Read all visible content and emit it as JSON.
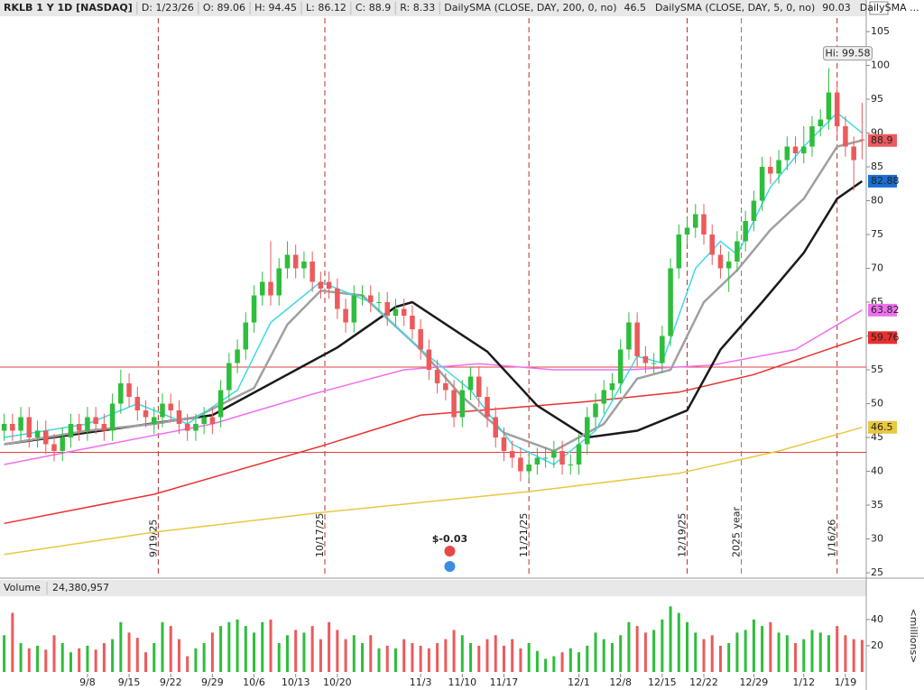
{
  "chart_data": {
    "type": "candlestick",
    "header": [
      "RKLB 1 Y 1D [NASDAQ]",
      "D: 1/23/26",
      "O: 89.06",
      "H: 94.45",
      "L: 86.12",
      "C: 88.9",
      "R: 8.33"
    ],
    "study_legend": [
      {
        "label": "DailySMA (CLOSE, DAY, 200, 0, no)",
        "readout": "46.5",
        "color": "#d8a000"
      },
      {
        "label": "DailySMA (CLOSE, DAY, 5, 0, no)",
        "readout": "90.03",
        "color": "#10b0c8"
      },
      {
        "label": "DailySMA ...",
        "color": "#d040d0"
      }
    ],
    "up_color": "#2ebd3c",
    "down_color": "#ec5a5c",
    "open": [
      46,
      47,
      46,
      48,
      45,
      46,
      44,
      43,
      45,
      47,
      46,
      48,
      47,
      46,
      50,
      53,
      51,
      49,
      47,
      48,
      50,
      49,
      47,
      46,
      47,
      48,
      48,
      52,
      56,
      58,
      62,
      66,
      68,
      66,
      70,
      72,
      70,
      71,
      68,
      68,
      67,
      64,
      62,
      66,
      66,
      65,
      65,
      63,
      64,
      63,
      61,
      58,
      55,
      53,
      52,
      48,
      52,
      54,
      51,
      48,
      45,
      43,
      42,
      40,
      41,
      42,
      42,
      43,
      41,
      41,
      44,
      48,
      50,
      52,
      53,
      58,
      62,
      57,
      56,
      56,
      60,
      70,
      75,
      76,
      78,
      75,
      72,
      70,
      71,
      74,
      77,
      80,
      85,
      84,
      86,
      88,
      87,
      88,
      91,
      92,
      96,
      91,
      88,
      89.06
    ],
    "high": [
      48.5,
      48.5,
      49.5,
      49.5,
      47.5,
      47.5,
      45.5,
      46.5,
      48.5,
      48.5,
      49.5,
      49.5,
      48.5,
      51.5,
      55,
      54.5,
      52.5,
      50.5,
      49.5,
      51.5,
      51.5,
      50.5,
      48.5,
      48.5,
      49.5,
      49.5,
      53.5,
      57.5,
      59.5,
      63.5,
      67.5,
      69.5,
      74,
      71.5,
      74,
      73.5,
      72.5,
      72.5,
      69.5,
      69.5,
      68.5,
      65.5,
      67.5,
      67.5,
      67.5,
      66.5,
      66.5,
      65.5,
      65.5,
      64.5,
      62.5,
      59.5,
      56.5,
      54.5,
      53.5,
      53.5,
      55.5,
      55.5,
      52.5,
      49.5,
      46.5,
      44.5,
      43.5,
      42.5,
      43.5,
      43.5,
      44.5,
      44.5,
      42.5,
      45.5,
      49.5,
      51.5,
      53.5,
      54.5,
      59.5,
      63.5,
      63.5,
      58.5,
      57.5,
      61.5,
      71.5,
      76.5,
      77.5,
      79.5,
      79.5,
      76.5,
      73.5,
      72.5,
      75.5,
      78.5,
      81.5,
      86.5,
      86.5,
      87.5,
      89.5,
      89.5,
      91,
      92.5,
      93.5,
      99.58,
      97.5,
      92.5,
      89.5,
      94.45
    ],
    "low": [
      44.5,
      44.5,
      44.5,
      43.5,
      43.5,
      42.5,
      41.5,
      41.5,
      43.5,
      44.5,
      44.5,
      45.5,
      44.5,
      44.5,
      48.5,
      49.5,
      47.5,
      46.5,
      45.5,
      46.5,
      47.5,
      45.5,
      44.5,
      44.5,
      45.5,
      45.5,
      46.5,
      50.5,
      54.5,
      56.5,
      60.5,
      64.5,
      64.5,
      64.5,
      68.5,
      68.5,
      68.5,
      66.5,
      65.5,
      65.5,
      62.5,
      60.5,
      60.5,
      64.5,
      63.5,
      63.5,
      61.5,
      61.5,
      61.5,
      59.5,
      56.5,
      53.5,
      51.5,
      50.5,
      46.5,
      46.5,
      50.5,
      49.5,
      46.5,
      43.5,
      41.5,
      40.5,
      38.5,
      38.5,
      39.5,
      40.5,
      40.5,
      39.5,
      39.5,
      39.5,
      42.5,
      46.5,
      48.5,
      50.5,
      51.5,
      56.5,
      55.5,
      54.5,
      54.5,
      54.5,
      58.5,
      68.5,
      73.5,
      74.5,
      73.5,
      70.5,
      68.5,
      66.5,
      69.5,
      72.5,
      75.5,
      78.5,
      82.5,
      82.5,
      84.5,
      85.5,
      85.5,
      86.5,
      89.5,
      90.5,
      89.5,
      86.5,
      81.5,
      86.12
    ],
    "close": [
      47,
      46,
      48,
      45,
      46,
      44,
      43,
      45,
      47,
      46,
      48,
      47,
      46,
      50,
      53,
      51,
      49,
      48,
      48,
      50,
      49,
      47,
      46,
      47,
      48,
      47,
      52,
      56,
      58,
      62,
      66,
      68,
      66,
      70,
      72,
      70,
      71,
      68,
      67,
      67,
      64,
      62,
      66,
      66,
      65,
      65,
      63,
      64,
      63,
      61,
      58,
      55,
      53,
      52,
      48,
      52,
      54,
      51,
      48,
      45,
      43,
      42,
      40,
      41,
      42,
      42,
      43,
      41,
      41,
      44,
      48,
      50,
      52,
      53,
      58,
      62,
      57,
      56,
      56,
      60,
      70,
      75,
      76,
      78,
      75,
      72,
      70,
      71,
      74,
      77,
      80,
      85,
      84,
      86,
      88,
      87,
      88,
      91,
      92,
      96,
      91,
      88,
      86,
      88.9
    ],
    "lines": [
      {
        "color": "#e8c840",
        "x": [
          0,
          18,
          38,
          63,
          81,
          93,
          103
        ],
        "values": [
          27.7,
          31,
          33.9,
          37,
          39.7,
          43,
          46.5
        ]
      },
      {
        "color": "#e83030",
        "x": [
          0,
          18,
          38,
          50,
          70,
          81,
          90,
          103
        ],
        "values": [
          32.3,
          36.6,
          43.7,
          48.3,
          50.3,
          51.7,
          54.3,
          59.76
        ]
      },
      {
        "color": "#ee70ee",
        "x": [
          0,
          25,
          37,
          48,
          57,
          66,
          75,
          85,
          95,
          103
        ],
        "values": [
          41,
          47,
          51.4,
          55,
          55.9,
          55,
          55,
          55.7,
          58,
          63.82
        ]
      },
      {
        "color": "#1a1a1a",
        "x": [
          0,
          25,
          40,
          47,
          49,
          58,
          64,
          70,
          76,
          82,
          86,
          91,
          96,
          100,
          103
        ],
        "values": [
          44,
          48.3,
          58.3,
          64.3,
          65,
          57.7,
          49.7,
          45,
          46,
          49,
          58,
          65,
          72.3,
          80.3,
          82.88
        ]
      },
      {
        "color": "#a0a0a0",
        "x": [
          0,
          10,
          18,
          23,
          30,
          34,
          38,
          43,
          50,
          55,
          60,
          66,
          72,
          76,
          80,
          84,
          88,
          92,
          96,
          100,
          103
        ],
        "values": [
          44,
          46,
          47,
          48,
          52.3,
          61.7,
          66.7,
          66,
          58,
          51,
          45.7,
          43,
          47,
          53.7,
          55,
          65,
          69.7,
          75.7,
          80.3,
          88,
          88.9
        ]
      },
      {
        "color": "#40d8e8",
        "x": [
          0,
          10,
          16,
          22,
          28,
          32,
          38,
          44,
          50,
          56,
          61,
          66,
          71,
          76,
          79,
          83,
          86,
          88,
          92,
          96,
          100,
          103
        ],
        "values": [
          45,
          47,
          50,
          47,
          52,
          62,
          68,
          65,
          58,
          52,
          44,
          41,
          46,
          57,
          56,
          70,
          74,
          72,
          82,
          88,
          93,
          90.03
        ]
      }
    ],
    "hlines": [
      {
        "value": 55.4,
        "color": "#e04040"
      },
      {
        "value": 42.8,
        "color": "#e04040"
      }
    ],
    "vlines": [
      {
        "x": 18.5,
        "label": "9/19/25",
        "color": "#b03030"
      },
      {
        "x": 38.5,
        "label": "10/17/25",
        "color": "#b03030"
      },
      {
        "x": 63,
        "label": "11/21/25",
        "color": "#b03030"
      },
      {
        "x": 82,
        "label": "12/19/25",
        "color": "#b03030"
      },
      {
        "x": 88.5,
        "label": "2025 year",
        "color": "#808080"
      },
      {
        "x": 100,
        "label": "1/16/26",
        "color": "#b03030"
      }
    ],
    "earnings": {
      "x": 53.5,
      "label": "$-0.03"
    },
    "high_marker": {
      "x": 99,
      "value": 99.58,
      "label": "Hi: 99.58"
    },
    "price_labels": [
      {
        "value": 88.9,
        "label": "88.9",
        "color": "#ec5a5c"
      },
      {
        "value": 82.88,
        "label": "82.88",
        "color": "#1a6fd0"
      },
      {
        "value": 63.82,
        "label": "63.82",
        "color": "#ee70ee"
      },
      {
        "value": 59.76,
        "label": "59.76",
        "color": "#e83030"
      },
      {
        "value": 46.5,
        "label": "46.5",
        "color": "#e8c840"
      }
    ],
    "ylim": [
      25,
      105
    ],
    "yticks": [
      25,
      30,
      35,
      40,
      45,
      50,
      55,
      60,
      65,
      70,
      75,
      80,
      85,
      90,
      95,
      100,
      105
    ],
    "xlim": [
      -0.5,
      103.5
    ],
    "xticks": [
      {
        "value": 10,
        "label": "9/8"
      },
      {
        "value": 15,
        "label": "9/15"
      },
      {
        "value": 20,
        "label": "9/22"
      },
      {
        "value": 25,
        "label": "9/29"
      },
      {
        "value": 30,
        "label": "10/6"
      },
      {
        "value": 35,
        "label": "10/13"
      },
      {
        "value": 40,
        "label": "10/20"
      },
      {
        "value": 50,
        "label": "11/3"
      },
      {
        "value": 55,
        "label": "11/10"
      },
      {
        "value": 60,
        "label": "11/17"
      },
      {
        "value": 69,
        "label": "12/1"
      },
      {
        "value": 74,
        "label": "12/8"
      },
      {
        "value": 79,
        "label": "12/15"
      },
      {
        "value": 84,
        "label": "12/22"
      },
      {
        "value": 90,
        "label": "12/29"
      },
      {
        "value": 96,
        "label": "1/12"
      },
      {
        "value": 101,
        "label": "1/19"
      }
    ],
    "volume": {
      "title": "Volume",
      "readout": "24,380,957",
      "unit": "<millions>",
      "values": [
        28,
        45,
        22,
        18,
        20,
        17,
        28,
        22,
        15,
        18,
        20,
        17,
        22,
        25,
        38,
        30,
        26,
        15,
        22,
        38,
        35,
        25,
        12,
        18,
        22,
        30,
        35,
        38,
        40,
        35,
        30,
        38,
        40,
        22,
        28,
        32,
        30,
        35,
        25,
        38,
        32,
        25,
        28,
        22,
        28,
        18,
        20,
        18,
        25,
        22,
        20,
        18,
        22,
        25,
        32,
        28,
        22,
        20,
        25,
        28,
        20,
        25,
        18,
        22,
        16,
        10,
        12,
        15,
        18,
        15,
        20,
        30,
        25,
        22,
        28,
        38,
        35,
        30,
        32,
        40,
        50,
        45,
        38,
        30,
        25,
        28,
        20,
        22,
        30,
        32,
        40,
        35,
        38,
        30,
        28,
        22,
        25,
        32,
        30,
        28,
        35,
        28,
        25,
        24.38
      ],
      "ylim": [
        0,
        55
      ],
      "yticks": [
        20,
        40
      ]
    }
  }
}
